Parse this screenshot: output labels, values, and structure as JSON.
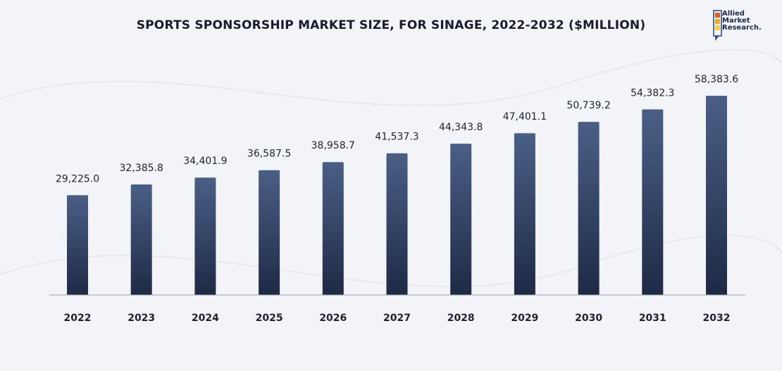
{
  "chart_data": {
    "type": "bar",
    "title": "SPORTS SPONSORSHIP MARKET SIZE, FOR SINAGE, 2022-2032 ($MILLION)",
    "categories": [
      "2022",
      "2023",
      "2024",
      "2025",
      "2026",
      "2027",
      "2028",
      "2029",
      "2030",
      "2031",
      "2032"
    ],
    "values": [
      29225.0,
      32385.8,
      34401.9,
      36587.5,
      38958.7,
      41537.3,
      44343.8,
      47401.1,
      50739.2,
      54382.3,
      58383.6
    ],
    "value_labels": [
      "29,225.0",
      "32,385.8",
      "34,401.9",
      "36,587.5",
      "38,958.7",
      "41,537.3",
      "44,343.8",
      "47,401.1",
      "50,739.2",
      "54,382.3",
      "58,383.6"
    ],
    "xlabel": "",
    "ylabel": "",
    "ylim": [
      0,
      58383.6
    ],
    "grid": false,
    "legend": "none",
    "colors": {
      "bar_top": "#4a5f86",
      "bar_bottom": "#1e2a45",
      "axis": "#9aa0ab",
      "text": "#1c2230"
    }
  },
  "logo": {
    "line1": "Allied",
    "line2": "Market",
    "line3": "Research."
  }
}
